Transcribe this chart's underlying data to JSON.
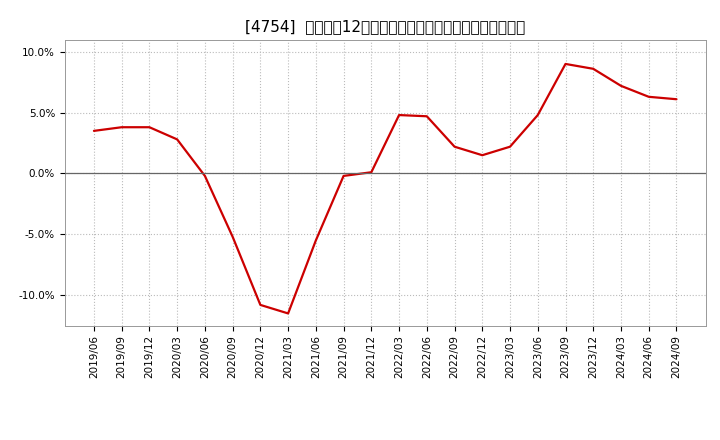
{
  "title": "[4754]  売上高の12か月移動合計の対前年同期増減率の推移",
  "line_color": "#cc0000",
  "background_color": "#ffffff",
  "grid_color": "#bbbbbb",
  "x_labels": [
    "2019/06",
    "2019/09",
    "2019/12",
    "2020/03",
    "2020/06",
    "2020/09",
    "2020/12",
    "2021/03",
    "2021/06",
    "2021/09",
    "2021/12",
    "2022/03",
    "2022/06",
    "2022/09",
    "2022/12",
    "2023/03",
    "2023/06",
    "2023/09",
    "2023/12",
    "2024/03",
    "2024/06",
    "2024/09"
  ],
  "y_values": [
    3.5,
    3.8,
    3.8,
    2.8,
    -0.2,
    -5.2,
    -10.8,
    -11.5,
    -5.5,
    -0.2,
    0.1,
    4.8,
    4.7,
    2.2,
    1.5,
    2.2,
    4.8,
    9.0,
    8.6,
    7.2,
    6.3,
    6.1
  ],
  "ylim": [
    -12.5,
    11.0
  ],
  "yticks": [
    -10.0,
    -5.0,
    0.0,
    5.0,
    10.0
  ],
  "ytick_labels": [
    "-10.0%",
    "-5.0%",
    "0.0%",
    "5.0%",
    "10.0%"
  ],
  "title_fontsize": 11,
  "tick_fontsize": 7.5
}
